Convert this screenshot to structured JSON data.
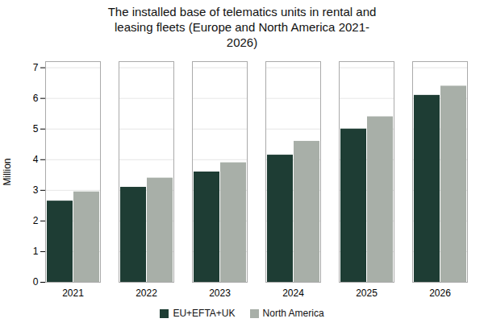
{
  "chart_data": {
    "type": "bar",
    "title": "The installed base of telematics units in rental and\nleasing fleets (Europe and North America 2021-\n2026)",
    "categories": [
      "2021",
      "2022",
      "2023",
      "2024",
      "2025",
      "2026"
    ],
    "series": [
      {
        "name": "EU+EFTA+UK",
        "color": "#1e3d34",
        "values": [
          2.65,
          3.1,
          3.6,
          4.15,
          5.0,
          6.1
        ]
      },
      {
        "name": "North America",
        "color": "#a8afa8",
        "values": [
          2.95,
          3.4,
          3.9,
          4.6,
          5.4,
          6.4
        ]
      }
    ],
    "y_label": "Million",
    "ylim": [
      0,
      7.2
    ],
    "yticks": [
      0,
      1,
      2,
      3,
      4,
      5,
      6,
      7
    ],
    "grid": true,
    "legend": "bottom"
  }
}
